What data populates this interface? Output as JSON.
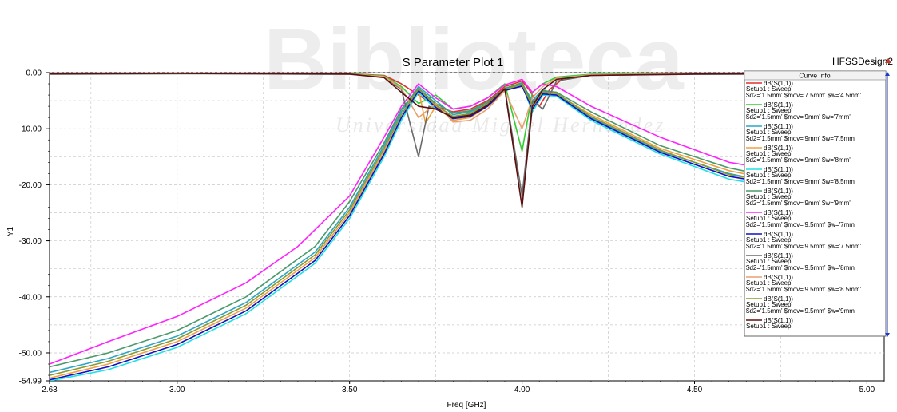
{
  "app": {
    "design_name": "HFSSDesign2",
    "watermark_title": "Biblioteca",
    "watermark_subtitle": "Universidad Miguel Hernández"
  },
  "colors": {
    "grid": "#c8c8c8",
    "axis": "#000000",
    "design_marker": "#c0392b"
  },
  "legend": {
    "title": "Curve Info",
    "entries": [
      {
        "line1": "dB(S(1,1))",
        "line2": "Setup1 : Sweep",
        "line3": "$d2='1.5mm' $mov='7.5mm' $w='4.5mm'",
        "color": "#e03030"
      },
      {
        "line1": "dB(S(1,1))",
        "line2": "Setup1 : Sweep",
        "line3": "$d2='1.5mm' $mov='9mm' $w='7mm'",
        "color": "#33cc33"
      },
      {
        "line1": "dB(S(1,1))",
        "line2": "Setup1 : Sweep",
        "line3": "$d2='1.5mm' $mov='9mm' $w='7.5mm'",
        "color": "#2aa6c8"
      },
      {
        "line1": "dB(S(1,1))",
        "line2": "Setup1 : Sweep",
        "line3": "$d2='1.5mm' $mov='9mm' $w='8mm'",
        "color": "#f0a040"
      },
      {
        "line1": "dB(S(1,1))",
        "line2": "Setup1 : Sweep",
        "line3": "$d2='1.5mm' $mov='9mm' $w='8.5mm'",
        "color": "#20e0e0"
      },
      {
        "line1": "dB(S(1,1))",
        "line2": "Setup1 : Sweep",
        "line3": "$d2='1.5mm' $mov='9mm' $w='9mm'",
        "color": "#4a9a6a"
      },
      {
        "line1": "dB(S(1,1))",
        "line2": "Setup1 : Sweep",
        "line3": "$d2='1.5mm' $mov='9.5mm' $w='7mm'",
        "color": "#ff22ff"
      },
      {
        "line1": "dB(S(1,1))",
        "line2": "Setup1 : Sweep",
        "line3": "$d2='1.5mm' $mov='9.5mm' $w='7.5mm'",
        "color": "#1010c0"
      },
      {
        "line1": "dB(S(1,1))",
        "line2": "Setup1 : Sweep",
        "line3": "$d2='1.5mm' $mov='9.5mm' $w='8mm'",
        "color": "#6a6a6a"
      },
      {
        "line1": "dB(S(1,1))",
        "line2": "Setup1 : Sweep",
        "line3": "$d2='1.5mm' $mov='9.5mm' $w='8.5mm'",
        "color": "#e8a070"
      },
      {
        "line1": "dB(S(1,1))",
        "line2": "Setup1 : Sweep",
        "line3": "$d2='1.5mm' $mov='9.5mm' $w='9mm'",
        "color": "#8a9a30"
      },
      {
        "line1": "dB(S(1,1))",
        "line2": "Setup1 : Sweep",
        "line3": "",
        "color": "#5a1010"
      }
    ]
  },
  "chart_data": {
    "type": "line",
    "title": "S Parameter Plot 1",
    "xlabel": "Freq [GHz]",
    "ylabel": "Y1",
    "xlim": [
      2.63,
      5.05
    ],
    "ylim": [
      -54.99,
      0.0
    ],
    "xticks": [
      2.63,
      3.0,
      3.5,
      4.0,
      4.5,
      5.0
    ],
    "xtick_labels": [
      "2.63",
      "3.00",
      "3.50",
      "4.00",
      "4.50",
      "5.00"
    ],
    "yticks": [
      0.0,
      -10.0,
      -20.0,
      -30.0,
      -40.0,
      -50.0,
      -54.99
    ],
    "ytick_labels": [
      "0.00",
      "-10.00",
      "-20.00",
      "-30.00",
      "-40.00",
      "-50.00",
      "-54.99"
    ],
    "grid": true,
    "legend_position": "right",
    "series": [
      {
        "color": "#e03030",
        "points": [
          [
            2.63,
            -0.1
          ],
          [
            3.0,
            -0.1
          ],
          [
            3.5,
            -0.2
          ],
          [
            3.6,
            -0.5
          ],
          [
            3.65,
            -2.0
          ],
          [
            3.7,
            -4.0
          ],
          [
            3.75,
            -6.0
          ],
          [
            3.8,
            -7.0
          ],
          [
            3.85,
            -6.5
          ],
          [
            3.9,
            -5.0
          ],
          [
            3.95,
            -2.5
          ],
          [
            4.0,
            -1.5
          ],
          [
            4.02,
            -3.0
          ],
          [
            4.05,
            -6.0
          ],
          [
            4.08,
            -3.0
          ],
          [
            4.12,
            -1.0
          ],
          [
            4.2,
            -0.4
          ],
          [
            4.5,
            -0.2
          ],
          [
            5.05,
            -0.1
          ]
        ]
      },
      {
        "color": "#33cc33",
        "points": [
          [
            2.63,
            -0.2
          ],
          [
            3.0,
            -0.1
          ],
          [
            3.5,
            -0.2
          ],
          [
            3.6,
            -0.6
          ],
          [
            3.65,
            -2.5
          ],
          [
            3.7,
            -5.5
          ],
          [
            3.75,
            -4.0
          ],
          [
            3.8,
            -6.5
          ],
          [
            3.85,
            -6.0
          ],
          [
            3.9,
            -4.5
          ],
          [
            3.95,
            -2.0
          ],
          [
            4.0,
            -14.0
          ],
          [
            4.03,
            -3.5
          ],
          [
            4.06,
            -2.0
          ],
          [
            4.1,
            -0.8
          ],
          [
            4.2,
            -0.3
          ],
          [
            4.5,
            -0.2
          ],
          [
            5.05,
            -0.1
          ]
        ]
      },
      {
        "color": "#2aa6c8",
        "points": [
          [
            2.63,
            -53.5
          ],
          [
            2.8,
            -51.0
          ],
          [
            3.0,
            -47.0
          ],
          [
            3.2,
            -41.0
          ],
          [
            3.4,
            -32.0
          ],
          [
            3.5,
            -24.0
          ],
          [
            3.6,
            -13.0
          ],
          [
            3.65,
            -7.0
          ],
          [
            3.7,
            -2.5
          ],
          [
            3.75,
            -5.0
          ],
          [
            3.8,
            -7.5
          ],
          [
            3.85,
            -7.0
          ],
          [
            3.9,
            -5.5
          ],
          [
            3.95,
            -3.0
          ],
          [
            4.0,
            -2.0
          ],
          [
            4.03,
            -5.0
          ],
          [
            4.06,
            -3.0
          ],
          [
            4.1,
            -4.0
          ],
          [
            4.2,
            -8.0
          ],
          [
            4.4,
            -14.0
          ],
          [
            4.6,
            -18.0
          ],
          [
            4.8,
            -20.5
          ],
          [
            5.05,
            -21.5
          ]
        ]
      },
      {
        "color": "#f0a040",
        "points": [
          [
            2.63,
            -54.5
          ],
          [
            2.8,
            -52.0
          ],
          [
            3.0,
            -48.0
          ],
          [
            3.2,
            -42.0
          ],
          [
            3.4,
            -33.0
          ],
          [
            3.5,
            -25.0
          ],
          [
            3.6,
            -14.0
          ],
          [
            3.65,
            -8.0
          ],
          [
            3.7,
            -3.0
          ],
          [
            3.72,
            -9.0
          ],
          [
            3.75,
            -6.0
          ],
          [
            3.8,
            -8.5
          ],
          [
            3.85,
            -8.0
          ],
          [
            3.9,
            -6.0
          ],
          [
            3.95,
            -3.0
          ],
          [
            4.0,
            -2.5
          ],
          [
            4.03,
            -6.0
          ],
          [
            4.06,
            -3.5
          ],
          [
            4.1,
            -3.8
          ],
          [
            4.2,
            -7.5
          ],
          [
            4.4,
            -13.5
          ],
          [
            4.6,
            -17.5
          ],
          [
            4.8,
            -20.0
          ],
          [
            5.05,
            -20.5
          ]
        ]
      },
      {
        "color": "#20e0e0",
        "points": [
          [
            2.63,
            -55.0
          ],
          [
            2.8,
            -53.0
          ],
          [
            3.0,
            -49.0
          ],
          [
            3.2,
            -43.0
          ],
          [
            3.4,
            -34.0
          ],
          [
            3.5,
            -26.0
          ],
          [
            3.6,
            -15.0
          ],
          [
            3.65,
            -8.5
          ],
          [
            3.7,
            -3.5
          ],
          [
            3.75,
            -6.5
          ],
          [
            3.8,
            -8.0
          ],
          [
            3.85,
            -7.5
          ],
          [
            3.9,
            -5.8
          ],
          [
            3.95,
            -3.0
          ],
          [
            4.0,
            -2.2
          ],
          [
            4.03,
            -7.0
          ],
          [
            4.06,
            -4.0
          ],
          [
            4.1,
            -4.2
          ],
          [
            4.2,
            -8.5
          ],
          [
            4.4,
            -14.5
          ],
          [
            4.6,
            -19.0
          ],
          [
            4.8,
            -21.0
          ],
          [
            5.05,
            -21.0
          ]
        ]
      },
      {
        "color": "#4a9a6a",
        "points": [
          [
            2.63,
            -52.5
          ],
          [
            2.8,
            -50.0
          ],
          [
            3.0,
            -46.0
          ],
          [
            3.2,
            -40.0
          ],
          [
            3.4,
            -31.0
          ],
          [
            3.5,
            -23.0
          ],
          [
            3.6,
            -12.5
          ],
          [
            3.65,
            -6.5
          ],
          [
            3.7,
            -2.8
          ],
          [
            3.75,
            -5.5
          ],
          [
            3.8,
            -7.2
          ],
          [
            3.85,
            -6.8
          ],
          [
            3.9,
            -5.2
          ],
          [
            3.95,
            -2.8
          ],
          [
            4.0,
            -1.8
          ],
          [
            4.03,
            -5.5
          ],
          [
            4.06,
            -3.2
          ],
          [
            4.1,
            -3.5
          ],
          [
            4.2,
            -7.0
          ],
          [
            4.4,
            -13.0
          ],
          [
            4.6,
            -17.0
          ],
          [
            4.8,
            -19.5
          ],
          [
            5.05,
            -20.0
          ]
        ]
      },
      {
        "color": "#ff22ff",
        "points": [
          [
            2.63,
            -52.0
          ],
          [
            2.8,
            -48.0
          ],
          [
            3.0,
            -43.5
          ],
          [
            3.2,
            -37.5
          ],
          [
            3.35,
            -31.0
          ],
          [
            3.5,
            -22.0
          ],
          [
            3.6,
            -11.5
          ],
          [
            3.65,
            -6.0
          ],
          [
            3.7,
            -2.0
          ],
          [
            3.75,
            -4.5
          ],
          [
            3.8,
            -6.5
          ],
          [
            3.85,
            -6.0
          ],
          [
            3.9,
            -4.5
          ],
          [
            3.95,
            -2.2
          ],
          [
            4.0,
            -1.2
          ],
          [
            4.03,
            -3.5
          ],
          [
            4.06,
            -2.0
          ],
          [
            4.1,
            -2.5
          ],
          [
            4.2,
            -6.0
          ],
          [
            4.4,
            -11.5
          ],
          [
            4.6,
            -16.0
          ],
          [
            4.8,
            -18.0
          ],
          [
            5.05,
            -18.5
          ]
        ]
      },
      {
        "color": "#1010c0",
        "points": [
          [
            2.63,
            -54.8
          ],
          [
            2.8,
            -52.5
          ],
          [
            3.0,
            -48.5
          ],
          [
            3.2,
            -42.5
          ],
          [
            3.4,
            -33.5
          ],
          [
            3.5,
            -25.5
          ],
          [
            3.6,
            -14.5
          ],
          [
            3.65,
            -8.0
          ],
          [
            3.7,
            -3.2
          ],
          [
            3.75,
            -6.2
          ],
          [
            3.8,
            -8.2
          ],
          [
            3.85,
            -7.8
          ],
          [
            3.9,
            -6.0
          ],
          [
            3.95,
            -3.2
          ],
          [
            4.0,
            -2.4
          ],
          [
            4.03,
            -6.5
          ],
          [
            4.06,
            -3.8
          ],
          [
            4.1,
            -4.0
          ],
          [
            4.2,
            -8.2
          ],
          [
            4.4,
            -14.2
          ],
          [
            4.6,
            -18.5
          ],
          [
            4.8,
            -20.5
          ],
          [
            5.05,
            -20.8
          ]
        ]
      },
      {
        "color": "#6a6a6a",
        "points": [
          [
            2.63,
            -0.3
          ],
          [
            3.0,
            -0.2
          ],
          [
            3.5,
            -0.3
          ],
          [
            3.6,
            -0.8
          ],
          [
            3.65,
            -3.0
          ],
          [
            3.7,
            -15.0
          ],
          [
            3.73,
            -6.0
          ],
          [
            3.8,
            -7.8
          ],
          [
            3.85,
            -7.4
          ],
          [
            3.9,
            -5.5
          ],
          [
            3.95,
            -2.8
          ],
          [
            4.0,
            -22.0
          ],
          [
            4.03,
            -5.0
          ],
          [
            4.06,
            -6.5
          ],
          [
            4.1,
            -1.5
          ],
          [
            4.2,
            -0.5
          ],
          [
            4.5,
            -0.3
          ],
          [
            5.05,
            -0.2
          ]
        ]
      },
      {
        "color": "#e8a070",
        "points": [
          [
            2.63,
            -0.2
          ],
          [
            3.0,
            -0.15
          ],
          [
            3.5,
            -0.25
          ],
          [
            3.6,
            -0.7
          ],
          [
            3.65,
            -2.8
          ],
          [
            3.7,
            -8.0
          ],
          [
            3.75,
            -5.5
          ],
          [
            3.8,
            -8.8
          ],
          [
            3.85,
            -8.5
          ],
          [
            3.9,
            -6.5
          ],
          [
            3.95,
            -3.2
          ],
          [
            4.0,
            -10.0
          ],
          [
            4.03,
            -4.5
          ],
          [
            4.06,
            -2.5
          ],
          [
            4.1,
            -1.0
          ],
          [
            4.2,
            -0.4
          ],
          [
            4.5,
            -0.2
          ],
          [
            5.05,
            -0.1
          ]
        ]
      },
      {
        "color": "#8a9a30",
        "points": [
          [
            2.63,
            -54.0
          ],
          [
            2.8,
            -51.5
          ],
          [
            3.0,
            -47.5
          ],
          [
            3.2,
            -41.5
          ],
          [
            3.4,
            -32.5
          ],
          [
            3.5,
            -24.5
          ],
          [
            3.6,
            -13.5
          ],
          [
            3.65,
            -7.5
          ],
          [
            3.7,
            -2.9
          ],
          [
            3.75,
            -5.8
          ],
          [
            3.8,
            -7.8
          ],
          [
            3.85,
            -7.3
          ],
          [
            3.9,
            -5.6
          ],
          [
            3.95,
            -3.0
          ],
          [
            4.0,
            -2.1
          ],
          [
            4.03,
            -6.0
          ],
          [
            4.06,
            -3.4
          ],
          [
            4.1,
            -3.7
          ],
          [
            4.2,
            -7.8
          ],
          [
            4.4,
            -13.8
          ],
          [
            4.6,
            -18.2
          ],
          [
            4.8,
            -20.2
          ],
          [
            5.05,
            -20.6
          ]
        ]
      },
      {
        "color": "#5a1010",
        "points": [
          [
            2.63,
            -0.2
          ],
          [
            3.0,
            -0.15
          ],
          [
            3.5,
            -0.25
          ],
          [
            3.6,
            -0.9
          ],
          [
            3.65,
            -3.5
          ],
          [
            3.7,
            -6.0
          ],
          [
            3.75,
            -6.5
          ],
          [
            3.8,
            -8.0
          ],
          [
            3.85,
            -7.6
          ],
          [
            3.9,
            -5.8
          ],
          [
            3.95,
            -2.9
          ],
          [
            4.0,
            -24.0
          ],
          [
            4.03,
            -6.0
          ],
          [
            4.06,
            -3.0
          ],
          [
            4.1,
            -1.2
          ],
          [
            4.2,
            -0.5
          ],
          [
            4.5,
            -0.25
          ],
          [
            5.05,
            -0.15
          ]
        ]
      }
    ]
  }
}
